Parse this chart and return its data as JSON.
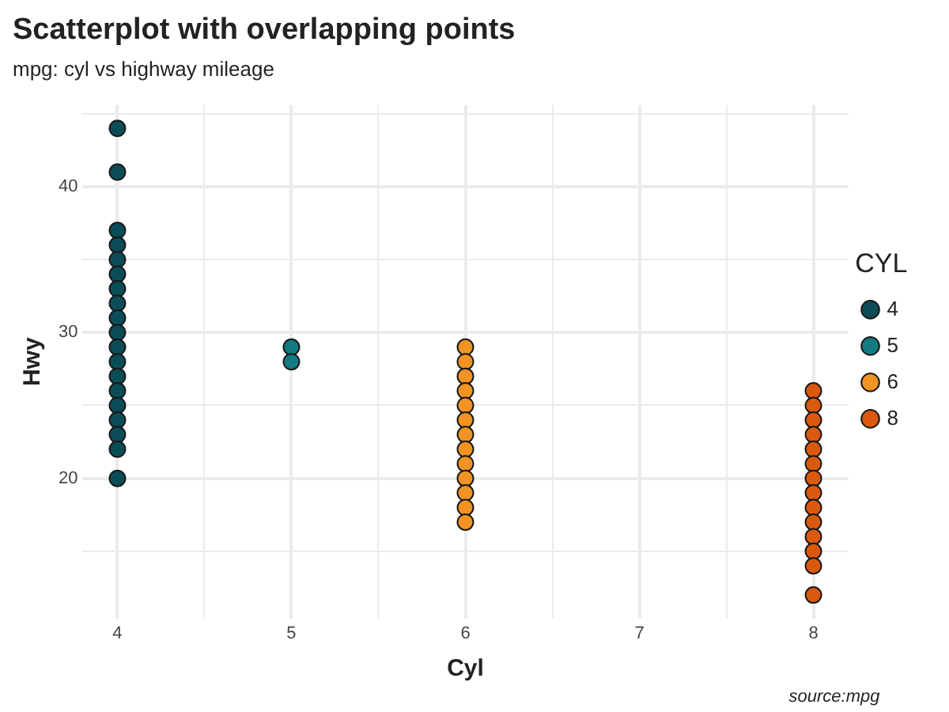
{
  "chart_data": {
    "type": "scatter",
    "title": "Scatterplot with overlapping points",
    "subtitle": "mpg: cyl vs highway mileage",
    "xlabel": "Cyl",
    "ylabel": "Hwy",
    "legend_title": "CYL",
    "annotations": [
      "source:mpg"
    ],
    "xlim": [
      3.8,
      8.2
    ],
    "xticks": [
      4,
      {
        "value": 4.5,
        "label": null
      },
      5,
      {
        "value": 5.5,
        "label": null
      },
      6,
      {
        "value": 6.5,
        "label": null
      },
      7,
      {
        "value": 7.5,
        "label": null
      },
      8
    ],
    "ylim": [
      10.4,
      45.6
    ],
    "yticks": [
      {
        "value": 15,
        "label": null
      },
      20,
      {
        "value": 25,
        "label": null
      },
      30,
      {
        "value": 35,
        "label": null
      },
      40,
      {
        "value": 45,
        "label": null
      }
    ],
    "grid": true,
    "legend": "right",
    "marker": "circle",
    "series": [
      {
        "name": "4",
        "color": "#0b4d57",
        "x": [
          4,
          4,
          4,
          4,
          4,
          4,
          4,
          4,
          4,
          4,
          4,
          4,
          4,
          4,
          4,
          4,
          4,
          4,
          4
        ],
        "values": [
          44,
          41,
          37,
          36,
          35,
          34,
          33,
          32,
          31,
          30,
          29,
          28,
          27,
          26,
          25,
          24,
          23,
          22,
          20
        ]
      },
      {
        "name": "5",
        "color": "#127a80",
        "x": [
          5,
          5
        ],
        "values": [
          29,
          28
        ]
      },
      {
        "name": "6",
        "color": "#f39324",
        "x": [
          6,
          6,
          6,
          6,
          6,
          6,
          6,
          6,
          6,
          6,
          6,
          6,
          6
        ],
        "values": [
          29,
          28,
          27,
          26,
          25,
          24,
          23,
          22,
          21,
          20,
          19,
          18,
          17
        ]
      },
      {
        "name": "8",
        "color": "#d9590e",
        "x": [
          8,
          8,
          8,
          8,
          8,
          8,
          8,
          8,
          8,
          8,
          8,
          8,
          8,
          8
        ],
        "values": [
          26,
          25,
          24,
          23,
          22,
          21,
          20,
          19,
          18,
          17,
          16,
          15,
          14,
          12
        ]
      }
    ]
  }
}
